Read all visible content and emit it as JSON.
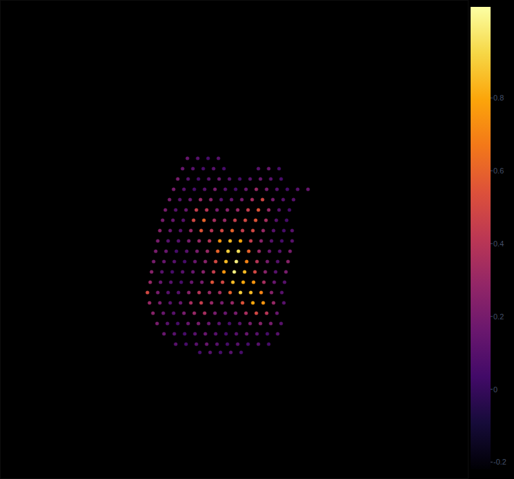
{
  "chart_data": {
    "type": "scatter",
    "tick_labels": false,
    "xlim": [
      0,
      680
    ],
    "ylim": [
      0,
      696
    ],
    "x": [
      272,
      287,
      302,
      317,
      265,
      280,
      295,
      310,
      325,
      375,
      390,
      405,
      258,
      273,
      288,
      303,
      318,
      333,
      348,
      363,
      378,
      393,
      408,
      252,
      267,
      282,
      297,
      312,
      327,
      342,
      357,
      372,
      387,
      402,
      417,
      432,
      447,
      246,
      261,
      276,
      291,
      306,
      321,
      336,
      351,
      366,
      381,
      396,
      411,
      426,
      240,
      255,
      270,
      285,
      300,
      315,
      330,
      345,
      360,
      375,
      390,
      405,
      420,
      236,
      251,
      266,
      281,
      296,
      311,
      326,
      341,
      356,
      371,
      386,
      401,
      416,
      232,
      247,
      262,
      277,
      292,
      307,
      322,
      337,
      352,
      367,
      382,
      397,
      412,
      424,
      229,
      244,
      259,
      274,
      289,
      304,
      319,
      334,
      349,
      364,
      379,
      394,
      409,
      424,
      226,
      241,
      256,
      271,
      286,
      301,
      316,
      331,
      346,
      361,
      376,
      391,
      406,
      421,
      223,
      238,
      253,
      268,
      283,
      298,
      313,
      328,
      343,
      358,
      373,
      388,
      403,
      418,
      220,
      235,
      250,
      265,
      280,
      295,
      310,
      325,
      340,
      355,
      370,
      385,
      400,
      415,
      218,
      233,
      248,
      263,
      278,
      293,
      308,
      323,
      338,
      353,
      368,
      383,
      398,
      413,
      214,
      229,
      244,
      259,
      274,
      289,
      304,
      319,
      334,
      349,
      364,
      379,
      394,
      409,
      217,
      232,
      247,
      262,
      277,
      292,
      307,
      322,
      337,
      352,
      367,
      382,
      397,
      412,
      222,
      237,
      252,
      267,
      282,
      297,
      312,
      327,
      342,
      357,
      372,
      387,
      402,
      228,
      243,
      258,
      273,
      288,
      303,
      318,
      333,
      348,
      363,
      378,
      393,
      408,
      238,
      253,
      268,
      283,
      298,
      313,
      328,
      343,
      358,
      373,
      388,
      403,
      255,
      270,
      285,
      300,
      315,
      330,
      345,
      360,
      375,
      390,
      290,
      305,
      320,
      335,
      350
    ],
    "values": [
      466,
      466,
      466,
      466,
      451,
      451,
      451,
      451,
      451,
      451,
      451,
      451,
      436,
      436,
      436,
      436,
      436,
      436,
      436,
      436,
      436,
      436,
      436,
      421,
      421,
      421,
      421,
      421,
      421,
      421,
      421,
      421,
      421,
      421,
      421,
      421,
      421,
      406,
      406,
      406,
      406,
      406,
      406,
      406,
      406,
      406,
      406,
      406,
      406,
      406,
      391,
      391,
      391,
      391,
      391,
      391,
      391,
      391,
      391,
      391,
      391,
      391,
      391,
      376,
      376,
      376,
      376,
      376,
      376,
      376,
      376,
      376,
      376,
      376,
      376,
      376,
      361,
      361,
      361,
      361,
      361,
      361,
      361,
      361,
      361,
      361,
      361,
      361,
      361,
      361,
      346,
      346,
      346,
      346,
      346,
      346,
      346,
      346,
      346,
      346,
      346,
      346,
      346,
      346,
      331,
      331,
      331,
      331,
      331,
      331,
      331,
      331,
      331,
      331,
      331,
      331,
      331,
      331,
      316,
      316,
      316,
      316,
      316,
      316,
      316,
      316,
      316,
      316,
      316,
      316,
      316,
      316,
      301,
      301,
      301,
      301,
      301,
      301,
      301,
      301,
      301,
      301,
      301,
      301,
      301,
      301,
      286,
      286,
      286,
      286,
      286,
      286,
      286,
      286,
      286,
      286,
      286,
      286,
      286,
      286,
      271,
      271,
      271,
      271,
      271,
      271,
      271,
      271,
      271,
      271,
      271,
      271,
      271,
      271,
      256,
      256,
      256,
      256,
      256,
      256,
      256,
      256,
      256,
      256,
      256,
      256,
      256,
      256,
      241,
      241,
      241,
      241,
      241,
      241,
      241,
      241,
      241,
      241,
      241,
      241,
      241,
      226,
      226,
      226,
      226,
      226,
      226,
      226,
      226,
      226,
      226,
      226,
      226,
      226,
      211,
      211,
      211,
      211,
      211,
      211,
      211,
      211,
      211,
      211,
      211,
      211,
      196,
      196,
      196,
      196,
      196,
      196,
      196,
      196,
      196,
      196,
      184,
      184,
      184,
      184,
      184
    ],
    "color_values": [
      0.15,
      0.1,
      0.05,
      0.1,
      0.15,
      0.1,
      0.05,
      0.1,
      0.05,
      0.1,
      0.15,
      0.05,
      0.2,
      0.1,
      0.05,
      0.1,
      0.15,
      0.1,
      0.05,
      0.1,
      0.15,
      0.1,
      0.05,
      0.2,
      0.1,
      0.05,
      0.1,
      0.2,
      0.1,
      0.05,
      0.15,
      0.3,
      0.2,
      0.1,
      0.05,
      0.1,
      0.15,
      0.2,
      0.1,
      0.15,
      0.3,
      0.25,
      0.1,
      0.15,
      0.2,
      0.35,
      0.5,
      0.2,
      0.1,
      0.1,
      0.2,
      0.1,
      0.15,
      0.45,
      0.4,
      0.2,
      0.25,
      0.3,
      0.45,
      0.55,
      0.3,
      0.1,
      0.05,
      0.2,
      0.15,
      0.1,
      0.5,
      0.6,
      0.35,
      0.3,
      0.45,
      0.5,
      0.55,
      0.35,
      0.1,
      0.05,
      0.25,
      0.15,
      0.1,
      0.3,
      0.55,
      0.4,
      0.5,
      0.6,
      0.45,
      0.5,
      0.3,
      0.1,
      0.05,
      0.1,
      0.2,
      0.1,
      0.1,
      0.2,
      0.3,
      0.4,
      0.75,
      0.85,
      0.8,
      0.45,
      0.25,
      0.1,
      0.05,
      0.1,
      0.2,
      0.15,
      0.05,
      0.1,
      0.2,
      0.3,
      0.6,
      0.9,
      0.95,
      0.6,
      0.3,
      0.15,
      0.1,
      0.2,
      0.2,
      0.15,
      0.1,
      0.05,
      0.15,
      0.25,
      0.5,
      0.85,
      1.0,
      0.7,
      0.4,
      0.2,
      0.1,
      0.25,
      0.25,
      0.1,
      0.05,
      0.1,
      0.15,
      0.25,
      0.45,
      0.75,
      1.0,
      0.85,
      0.5,
      0.25,
      0.1,
      0.2,
      0.3,
      0.15,
      0.1,
      0.05,
      0.15,
      0.2,
      0.55,
      0.5,
      0.85,
      0.8,
      0.75,
      0.35,
      0.15,
      0.1,
      0.5,
      0.2,
      0.1,
      0.1,
      0.25,
      0.4,
      0.3,
      0.35,
      0.6,
      0.9,
      0.85,
      0.7,
      0.25,
      0.1,
      0.3,
      0.2,
      0.1,
      0.15,
      0.35,
      0.45,
      0.3,
      0.2,
      0.3,
      0.55,
      0.8,
      0.75,
      0.3,
      0.1,
      0.25,
      0.15,
      0.1,
      0.2,
      0.3,
      0.35,
      0.2,
      0.15,
      0.2,
      0.35,
      0.5,
      0.4,
      0.15,
      0.2,
      0.1,
      0.05,
      0.15,
      0.2,
      0.15,
      0.1,
      0.05,
      0.1,
      0.2,
      0.25,
      0.2,
      0.1,
      0.15,
      0.1,
      0.05,
      0.1,
      0.15,
      0.1,
      0.05,
      0.1,
      0.15,
      0.1,
      0.05,
      0.1,
      0.1,
      0.05,
      0.1,
      0.15,
      0.1,
      0.05,
      0.1,
      0.05,
      0.1,
      0.05,
      0.05,
      0.1,
      0.05,
      0.1,
      0.05
    ],
    "colorbar": {
      "lim": [
        -0.22,
        1.05
      ],
      "ticks": [
        -0.2,
        0,
        0.2,
        0.4,
        0.6,
        0.8
      ]
    }
  }
}
